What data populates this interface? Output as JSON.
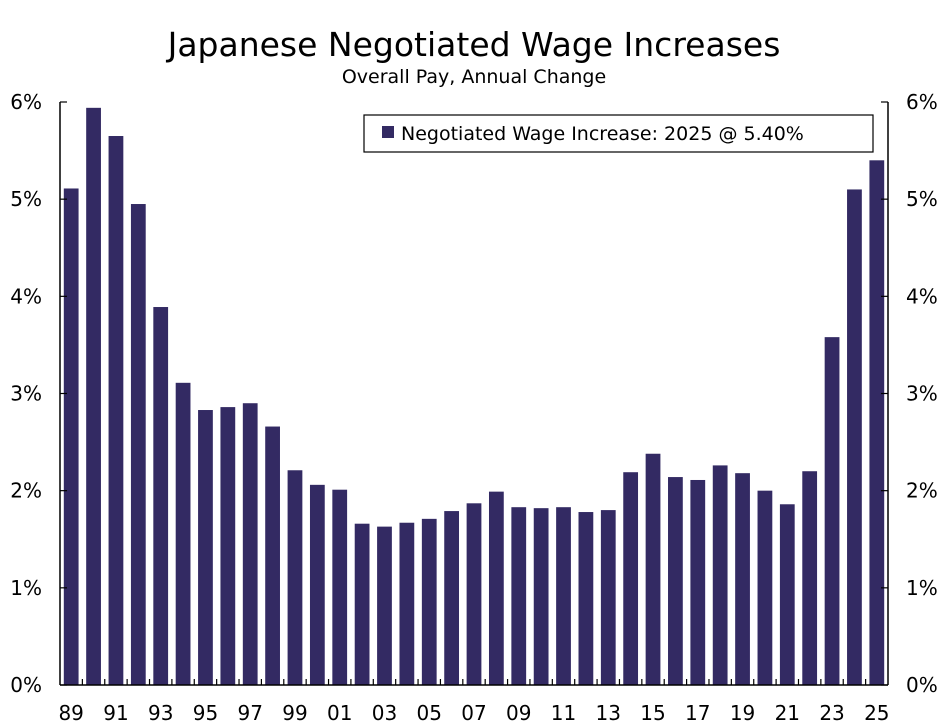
{
  "chart_data": {
    "type": "bar",
    "title": "Japanese Negotiated Wage Increases",
    "subtitle": "Overall Pay, Annual Change",
    "xlabel": "",
    "ylabel": "",
    "ylim": [
      0,
      6
    ],
    "y_ticks": [
      "0%",
      "1%",
      "2%",
      "3%",
      "4%",
      "5%",
      "6%"
    ],
    "x_tick_labels": [
      "89",
      "91",
      "93",
      "95",
      "97",
      "99",
      "01",
      "03",
      "05",
      "07",
      "09",
      "11",
      "13",
      "15",
      "17",
      "19",
      "21",
      "23",
      "25"
    ],
    "categories": [
      1989,
      1990,
      1991,
      1992,
      1993,
      1994,
      1995,
      1996,
      1997,
      1998,
      1999,
      2000,
      2001,
      2002,
      2003,
      2004,
      2005,
      2006,
      2007,
      2008,
      2009,
      2010,
      2011,
      2012,
      2013,
      2014,
      2015,
      2016,
      2017,
      2018,
      2019,
      2020,
      2021,
      2022,
      2023,
      2024,
      2025
    ],
    "series": [
      {
        "name": "Negotiated Wage Increase: 2025 @ 5.40%",
        "color": "#332a63",
        "values": [
          5.11,
          5.94,
          5.65,
          4.95,
          3.89,
          3.11,
          2.83,
          2.86,
          2.9,
          2.66,
          2.21,
          2.06,
          2.01,
          1.66,
          1.63,
          1.67,
          1.71,
          1.79,
          1.87,
          1.99,
          1.83,
          1.82,
          1.83,
          1.78,
          1.8,
          2.19,
          2.38,
          2.14,
          2.11,
          2.26,
          2.18,
          2.0,
          1.86,
          2.2,
          3.58,
          5.1,
          5.4
        ]
      }
    ],
    "legend": "top-right",
    "grid": false
  }
}
